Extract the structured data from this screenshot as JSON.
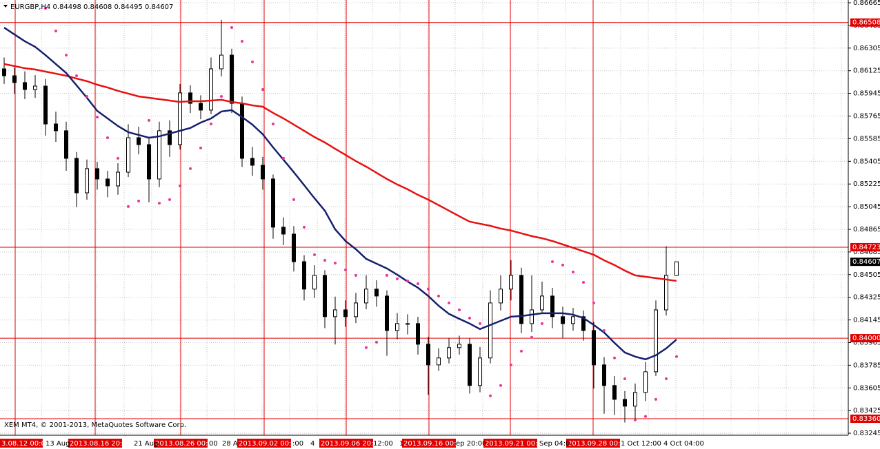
{
  "chart_data": {
    "type": "candlestick",
    "title": "EURGBP,H4 0.84498 0.84608 0.84495 0.84607",
    "footer": "XEM MT4, © 2001-2013, MetaQuotes Software Corp.",
    "open": [
      0.8614,
      0.86085,
      0.86031,
      0.85976,
      0.86003,
      0.85702,
      0.85648,
      0.85429,
      0.85155,
      0.85347,
      0.85265,
      0.8521,
      0.85319,
      0.85593,
      0.85538,
      0.85265,
      0.85648,
      0.85538,
      0.85949,
      0.85866,
      0.85812,
      0.8614,
      0.86249,
      0.85866,
      0.85429,
      0.85374,
      0.85265,
      0.84882,
      0.84827,
      0.84608,
      0.8439,
      0.84499,
      0.84171,
      0.84225,
      0.84171,
      0.8428,
      0.8439,
      0.84335,
      0.84061,
      0.84116,
      0.84116,
      0.83952,
      0.83788,
      0.83843,
      0.83925,
      0.83952,
      0.83624,
      0.83843,
      0.8428,
      0.8439,
      0.84499,
      0.84116,
      0.84225,
      0.84335,
      0.84171,
      0.84116,
      0.84171,
      0.84061,
      0.83788,
      0.83624,
      0.83514,
      0.8346,
      0.83569,
      0.83733,
      0.84225,
      0.84498
    ],
    "high": [
      0.8623,
      0.8615,
      0.8612,
      0.8609,
      0.8606,
      0.858,
      0.8572,
      0.8548,
      0.8542,
      0.854,
      0.8533,
      0.8539,
      0.857,
      0.8568,
      0.856,
      0.8572,
      0.8573,
      0.8602,
      0.8601,
      0.8593,
      0.8623,
      0.8653,
      0.863,
      0.8592,
      0.8552,
      0.8544,
      0.853,
      0.8496,
      0.8489,
      0.8466,
      0.8458,
      0.8454,
      0.8433,
      0.843,
      0.8436,
      0.845,
      0.8446,
      0.8438,
      0.842,
      0.8419,
      0.8417,
      0.8401,
      0.8392,
      0.84,
      0.8402,
      0.84,
      0.8393,
      0.8438,
      0.845,
      0.8462,
      0.8456,
      0.845,
      0.8445,
      0.844,
      0.8425,
      0.8424,
      0.8422,
      0.8413,
      0.8385,
      0.837,
      0.8358,
      0.8364,
      0.8381,
      0.843,
      0.8473,
      0.84608
    ],
    "low": [
      0.8602,
      0.8594,
      0.859,
      0.8591,
      0.8561,
      0.8556,
      0.8533,
      0.8504,
      0.851,
      0.8518,
      0.8512,
      0.8514,
      0.8528,
      0.8546,
      0.8508,
      0.852,
      0.8544,
      0.855,
      0.8579,
      0.8574,
      0.8578,
      0.8608,
      0.8579,
      0.8536,
      0.8529,
      0.8518,
      0.8479,
      0.8474,
      0.8453,
      0.843,
      0.8432,
      0.8408,
      0.8395,
      0.8409,
      0.8412,
      0.8423,
      0.8425,
      0.8386,
      0.8399,
      0.8403,
      0.8387,
      0.8355,
      0.8374,
      0.838,
      0.8387,
      0.8356,
      0.8357,
      0.838,
      0.8422,
      0.843,
      0.8404,
      0.8405,
      0.842,
      0.8408,
      0.84,
      0.8406,
      0.8398,
      0.836,
      0.834,
      0.8339,
      0.8333,
      0.8336,
      0.835,
      0.837,
      0.8418,
      0.84495
    ],
    "close": [
      0.86085,
      0.86031,
      0.85976,
      0.86003,
      0.85702,
      0.85648,
      0.85429,
      0.85155,
      0.85347,
      0.85265,
      0.8521,
      0.85319,
      0.85593,
      0.85538,
      0.85265,
      0.85648,
      0.85538,
      0.85949,
      0.85866,
      0.85812,
      0.8614,
      0.86249,
      0.85866,
      0.85429,
      0.85374,
      0.85265,
      0.84882,
      0.84827,
      0.84608,
      0.8439,
      0.84499,
      0.84171,
      0.84225,
      0.84171,
      0.8428,
      0.8439,
      0.84335,
      0.84061,
      0.84116,
      0.84116,
      0.83952,
      0.83788,
      0.83843,
      0.83925,
      0.83952,
      0.83624,
      0.83843,
      0.8428,
      0.8439,
      0.84499,
      0.84116,
      0.84225,
      0.84335,
      0.84171,
      0.84116,
      0.84171,
      0.84061,
      0.83788,
      0.83624,
      0.83514,
      0.8346,
      0.83569,
      0.83733,
      0.84225,
      0.84499,
      0.84607
    ],
    "overlays": [
      {
        "kind": "line",
        "color": "#e81010",
        "values": [
          0.86178,
          0.86162,
          0.86145,
          0.86135,
          0.86118,
          0.86102,
          0.86085,
          0.86063,
          0.86042,
          0.86014,
          0.85992,
          0.85965,
          0.85943,
          0.85921,
          0.8591,
          0.85899,
          0.85888,
          0.85877,
          0.85883,
          0.85883,
          0.85888,
          0.85894,
          0.85877,
          0.85866,
          0.8585,
          0.85839,
          0.8579,
          0.85746,
          0.85697,
          0.85648,
          0.85598,
          0.85555,
          0.85505,
          0.85456,
          0.85407,
          0.85363,
          0.85314,
          0.85265,
          0.85221,
          0.85183,
          0.85139,
          0.85101,
          0.85057,
          0.85013,
          0.84969,
          0.84926,
          0.84909,
          0.84893,
          0.84871,
          0.84855,
          0.84833,
          0.84811,
          0.84794,
          0.84772,
          0.84745,
          0.84718,
          0.8469,
          0.84663,
          0.84619,
          0.84581,
          0.84537,
          0.84499,
          0.84488,
          0.84477,
          0.84466,
          0.84455
        ]
      },
      {
        "kind": "line",
        "color": "#161f6e",
        "values": [
          0.86468,
          0.86413,
          0.86359,
          0.86315,
          0.86249,
          0.86178,
          0.86107,
          0.86009,
          0.8591,
          0.85806,
          0.85746,
          0.85686,
          0.85637,
          0.85615,
          0.85593,
          0.85604,
          0.85626,
          0.85648,
          0.8567,
          0.85713,
          0.85746,
          0.85801,
          0.85812,
          0.85757,
          0.85697,
          0.8562,
          0.85516,
          0.85418,
          0.85319,
          0.85216,
          0.85112,
          0.85013,
          0.84865,
          0.84772,
          0.84707,
          0.8463,
          0.84592,
          0.84554,
          0.84504,
          0.8445,
          0.84401,
          0.84335,
          0.84258,
          0.84193,
          0.84154,
          0.84116,
          0.84072,
          0.84105,
          0.84138,
          0.84171,
          0.84176,
          0.84187,
          0.84198,
          0.84198,
          0.84198,
          0.84187,
          0.8416,
          0.84105,
          0.84045,
          0.83963,
          0.83886,
          0.83854,
          0.83832,
          0.83864,
          0.83919,
          0.8399
        ]
      },
      {
        "kind": "dots",
        "color": "#ee3399",
        "values": [
          null,
          null,
          null,
          null,
          0.86621,
          0.86441,
          0.86249,
          0.86085,
          0.85921,
          0.85757,
          0.85593,
          0.85429,
          0.85046,
          0.8509,
          0.8573,
          0.85073,
          0.85101,
          0.8521,
          0.85347,
          0.85511,
          0.85702,
          0.85921,
          0.86468,
          0.86359,
          0.86195,
          0.85976,
          0.85702,
          0.85429,
          0.85101,
          0.84882,
          0.84663,
          0.84619,
          0.84597,
          0.84543,
          0.84499,
          0.83925,
          0.83968,
          0.84499,
          0.84472,
          0.84455,
          0.84433,
          0.8439,
          0.84335,
          0.8428,
          0.84225,
          0.8416,
          0.84116,
          0.83542,
          0.83624,
          0.83788,
          0.83897,
          0.84007,
          0.84116,
          0.84608,
          0.84581,
          0.84526,
          0.84444,
          0.8428,
          0.84061,
          0.83843,
          0.83678,
          0.8335,
          0.83378,
          0.83514,
          0.83678,
          0.83854
        ]
      }
    ],
    "hlines": [
      0.86508,
      0.84723,
      {
        "value": 0.84,
        "label": "0.84000"
      },
      {
        "value": 0.8336,
        "label": "0.83360"
      }
    ],
    "ylim": [
      0.83229,
      0.86687
    ],
    "yticks": [
      0.86665,
      0.86485,
      0.86305,
      0.86125,
      0.85945,
      0.85765,
      0.85585,
      0.85405,
      0.85225,
      0.85045,
      0.84865,
      0.84685,
      0.84505,
      0.84325,
      0.84145,
      0.83965,
      0.83785,
      0.83605,
      0.83425,
      0.83245
    ],
    "grid": true,
    "time_labels": [
      "13 Aug",
      "21 Aug",
      "00",
      "28 A",
      ":00",
      "4",
      "12:00",
      "1",
      "ep 20:00",
      "Sep 04:0",
      "1 Oct 12:00",
      "4 Oct 04:00"
    ],
    "period_labels": [
      "3.08.12 00:00",
      "2013.08.16 20:00",
      "2013.08.26 00:00",
      "2013.09.02 00:00",
      "2013.09.06 20:00",
      "2013.09.16 00:00",
      "2013.09.21 00:00",
      "2013.09.28 00:00"
    ]
  }
}
